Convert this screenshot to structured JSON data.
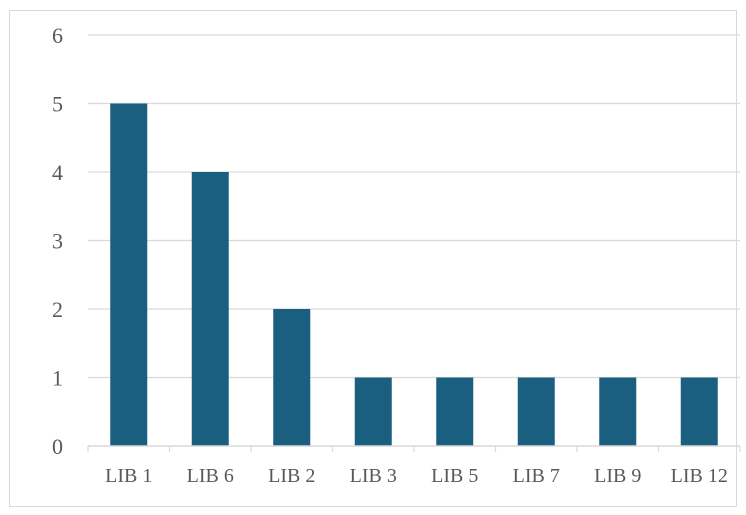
{
  "chart_data": {
    "type": "bar",
    "title": "",
    "xlabel": "",
    "ylabel": "",
    "categories": [
      "LIB 1",
      "LIB 6",
      "LIB 2",
      "LIB 3",
      "LIB 5",
      "LIB 7",
      "LIB 9",
      "LIB 12"
    ],
    "values": [
      5,
      4,
      2,
      1,
      1,
      1,
      1,
      1
    ],
    "ylim": [
      0,
      6
    ],
    "yticks": [
      "0",
      "1",
      "2",
      "3",
      "4",
      "5",
      "6"
    ],
    "grid": true,
    "legend": "none",
    "colors": {
      "bar": "#1a5e80",
      "grid": "#d9d9d9",
      "axis": "#d9d9d9",
      "text": "#595959"
    }
  }
}
